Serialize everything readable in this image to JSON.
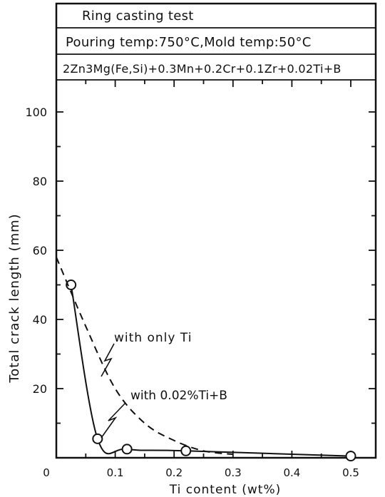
{
  "chart_data": {
    "type": "line",
    "header_lines": [
      "Ring casting test",
      "Pouring temp:750°C,Mold temp:50°C",
      "2Zn3Mg(Fe,Si)+0.3Mn+0.2Cr+0.1Zr+0.02Ti+B"
    ],
    "xlabel": "Ti content (wt%)",
    "ylabel": "Total crack length (mm)",
    "x_ticks": [
      "0",
      "0.1",
      "0.2",
      "0.3",
      "0.4",
      "0.5"
    ],
    "y_ticks": [
      "20",
      "40",
      "60",
      "80",
      "100"
    ],
    "xlim": [
      0,
      0.5
    ],
    "ylim": [
      0,
      110
    ],
    "series": [
      {
        "name": "with 0.02%Ti+B",
        "style": "solid",
        "markers": "open-circle",
        "x": [
          0.025,
          0.07,
          0.12,
          0.22,
          0.5
        ],
        "y": [
          50,
          5.5,
          2.5,
          2.0,
          0.5
        ]
      },
      {
        "name": "with only Ti",
        "style": "dashed",
        "x": [
          0.0,
          0.05,
          0.1,
          0.15,
          0.2,
          0.25,
          0.3
        ],
        "y": [
          58,
          38,
          20,
          10,
          5,
          2,
          1
        ]
      }
    ],
    "colors": {
      "ink": "#111111",
      "background": "#ffffff"
    }
  }
}
